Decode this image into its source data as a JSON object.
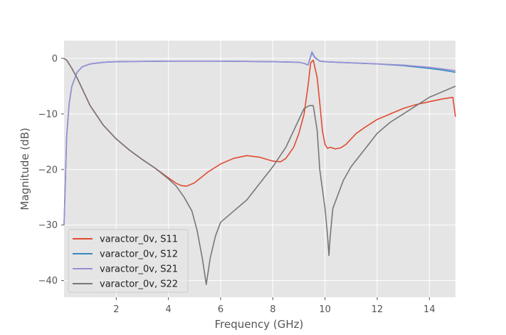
{
  "chart_data": {
    "type": "line",
    "title": "",
    "xlabel": "Frequency (GHz)",
    "ylabel": "Magnitude (dB)",
    "xlim": [
      0.0,
      15.0
    ],
    "ylim": [
      -43,
      3.2
    ],
    "xticks": [
      2,
      4,
      6,
      8,
      10,
      12,
      14
    ],
    "yticks": [
      0,
      -10,
      -20,
      -30,
      -40
    ],
    "grid": true,
    "legend_position": "lower-left",
    "series": [
      {
        "name": "varactor_0v, S11",
        "color": "#E24A33",
        "x": [
          0.0,
          0.1,
          0.3,
          0.5,
          0.8,
          1.0,
          1.5,
          2.0,
          2.5,
          3.0,
          3.5,
          4.0,
          4.3,
          4.5,
          4.7,
          5.0,
          5.5,
          6.0,
          6.5,
          7.0,
          7.5,
          8.0,
          8.3,
          8.5,
          8.8,
          9.0,
          9.2,
          9.35,
          9.45,
          9.55,
          9.7,
          9.8,
          9.9,
          10.0,
          10.1,
          10.2,
          10.4,
          10.6,
          10.8,
          11.0,
          11.2,
          11.5,
          12.0,
          12.5,
          13.0,
          13.5,
          14.0,
          14.5,
          14.9,
          15.0
        ],
        "y": [
          0.0,
          -0.3,
          -1.8,
          -3.5,
          -6.5,
          -8.5,
          -12.0,
          -14.5,
          -16.5,
          -18.2,
          -19.8,
          -21.5,
          -22.5,
          -22.9,
          -23.0,
          -22.4,
          -20.5,
          -19.0,
          -18.0,
          -17.5,
          -17.8,
          -18.5,
          -18.6,
          -18.0,
          -16.0,
          -13.5,
          -10.0,
          -5.0,
          -0.8,
          -0.3,
          -3.5,
          -8.0,
          -13.0,
          -15.5,
          -16.2,
          -16.0,
          -16.3,
          -16.1,
          -15.5,
          -14.5,
          -13.5,
          -12.5,
          -11.0,
          -10.0,
          -9.0,
          -8.3,
          -7.8,
          -7.3,
          -7.0,
          -10.5
        ]
      },
      {
        "name": "varactor_0v, S12",
        "color": "#348ABD",
        "x": [
          0.0,
          0.1,
          0.2,
          0.3,
          0.5,
          0.7,
          1.0,
          1.5,
          2.0,
          4.0,
          6.0,
          8.0,
          9.0,
          9.2,
          9.35,
          9.5,
          9.6,
          9.8,
          10.0,
          10.5,
          11.0,
          12.0,
          13.0,
          14.0,
          14.5,
          15.0
        ],
        "y": [
          -30.0,
          -14.0,
          -8.0,
          -5.0,
          -2.5,
          -1.5,
          -1.0,
          -0.7,
          -0.6,
          -0.5,
          -0.5,
          -0.6,
          -0.7,
          -0.9,
          -1.2,
          1.0,
          0.2,
          -0.5,
          -0.6,
          -0.7,
          -0.8,
          -1.0,
          -1.3,
          -1.8,
          -2.1,
          -2.5
        ]
      },
      {
        "name": "varactor_0v, S21",
        "color": "#988ED5",
        "x": [
          0.0,
          0.1,
          0.2,
          0.3,
          0.5,
          0.7,
          1.0,
          1.5,
          2.0,
          4.0,
          6.0,
          8.0,
          9.0,
          9.2,
          9.35,
          9.5,
          9.6,
          9.8,
          10.0,
          10.5,
          11.0,
          12.0,
          13.0,
          14.0,
          14.5,
          15.0
        ],
        "y": [
          -30.0,
          -14.0,
          -8.0,
          -5.0,
          -2.5,
          -1.5,
          -1.0,
          -0.7,
          -0.6,
          -0.5,
          -0.5,
          -0.6,
          -0.7,
          -0.9,
          -1.2,
          1.2,
          0.3,
          -0.5,
          -0.6,
          -0.7,
          -0.8,
          -1.0,
          -1.2,
          -1.6,
          -1.9,
          -2.2
        ]
      },
      {
        "name": "varactor_0v, S22",
        "color": "#777777",
        "x": [
          0.0,
          0.1,
          0.3,
          0.5,
          0.8,
          1.0,
          1.5,
          2.0,
          2.5,
          3.0,
          3.5,
          4.0,
          4.3,
          4.6,
          4.9,
          5.1,
          5.3,
          5.45,
          5.6,
          5.8,
          6.0,
          6.5,
          7.0,
          7.5,
          8.0,
          8.5,
          8.8,
          9.0,
          9.2,
          9.4,
          9.55,
          9.7,
          9.8,
          10.0,
          10.1,
          10.15,
          10.2,
          10.3,
          10.5,
          10.7,
          11.0,
          11.5,
          12.0,
          12.5,
          13.0,
          13.5,
          14.0,
          14.5,
          15.0
        ],
        "y": [
          0.0,
          -0.3,
          -1.8,
          -3.5,
          -6.5,
          -8.5,
          -12.0,
          -14.5,
          -16.5,
          -18.2,
          -19.8,
          -21.7,
          -23.0,
          -25.0,
          -27.5,
          -31.0,
          -36.0,
          -40.7,
          -36.0,
          -32.0,
          -29.5,
          -27.5,
          -25.5,
          -22.5,
          -19.5,
          -16.0,
          -13.0,
          -11.0,
          -9.0,
          -8.5,
          -8.5,
          -13.0,
          -20.0,
          -27.0,
          -32.0,
          -35.5,
          -32.0,
          -27.0,
          -24.5,
          -22.0,
          -19.5,
          -16.5,
          -13.5,
          -11.5,
          -10.0,
          -8.5,
          -7.0,
          -6.0,
          -5.0
        ]
      }
    ]
  }
}
